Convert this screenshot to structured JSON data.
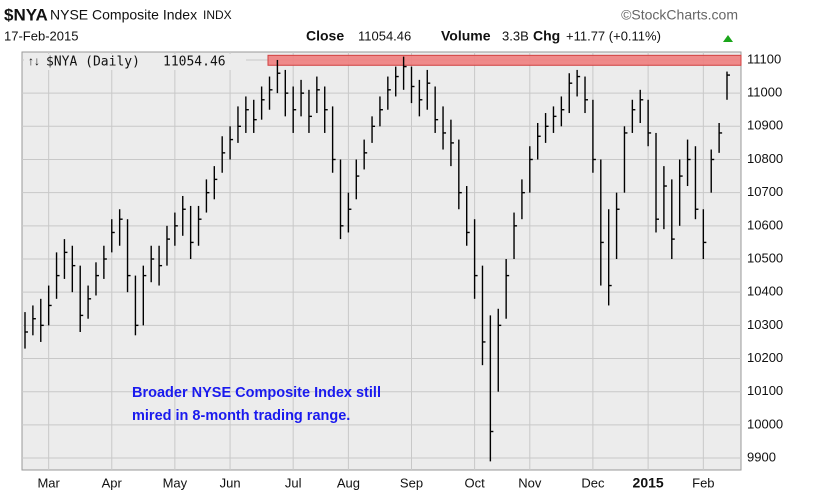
{
  "header": {
    "symbol": "$NYA",
    "name": "NYSE Composite Index",
    "exchange": "INDX",
    "source": "©StockCharts.com",
    "date": "17-Feb-2015",
    "close_label": "Close",
    "volume_label": "Volume",
    "volume": "3.3B",
    "change_label": "Chg",
    "change": "+11.77 (+0.11%)"
  },
  "chart_data": {
    "type": "hlc",
    "legend_symbol": "↑↓",
    "name": "$NYA (Daily)",
    "color": "#000000",
    "annotation": [
      "Broader NYSE Composite Index still",
      "mired in 8-month trading range."
    ],
    "annotation_color": "#1a1aee",
    "resistance_band": {
      "low": 11084,
      "high": 11114,
      "color": "#f08080"
    },
    "categories": [
      null,
      null,
      null,
      "Mar",
      null,
      null,
      null,
      null,
      null,
      null,
      null,
      "Apr",
      null,
      null,
      null,
      null,
      null,
      null,
      null,
      "May",
      null,
      null,
      null,
      null,
      null,
      null,
      "Jun",
      null,
      null,
      null,
      null,
      null,
      null,
      null,
      "Jul",
      null,
      null,
      null,
      null,
      null,
      null,
      "Aug",
      null,
      null,
      null,
      null,
      null,
      null,
      null,
      "Sep",
      null,
      null,
      null,
      null,
      null,
      null,
      null,
      "Oct",
      null,
      null,
      null,
      null,
      null,
      null,
      "Nov",
      null,
      null,
      null,
      null,
      null,
      null,
      null,
      "Dec",
      null,
      null,
      null,
      null,
      null,
      null,
      "2015",
      null,
      null,
      null,
      null,
      null,
      null,
      "Feb",
      null,
      null,
      null
    ],
    "high": [
      10340,
      10360,
      10380,
      10420,
      10520,
      10560,
      10540,
      10480,
      10420,
      10490,
      10540,
      10620,
      10650,
      10620,
      10450,
      10480,
      10540,
      10540,
      10600,
      10640,
      10690,
      10660,
      10660,
      10740,
      10780,
      10870,
      10900,
      10960,
      10990,
      10980,
      11020,
      11050,
      11100,
      11070,
      11020,
      11040,
      11010,
      11050,
      11020,
      10960,
      10800,
      10700,
      10800,
      10860,
      10930,
      10990,
      11050,
      11080,
      11110,
      11080,
      11040,
      11070,
      11020,
      10960,
      10920,
      10860,
      10720,
      10620,
      10480,
      10330,
      10350,
      10500,
      10640,
      10740,
      10840,
      10910,
      10940,
      10960,
      10990,
      11060,
      11070,
      11050,
      10980,
      10800,
      10650,
      10700,
      10900,
      10980,
      11010,
      10980,
      10880,
      10780,
      10740,
      10800,
      10860,
      10840,
      10650,
      10830,
      10910,
      11065
    ],
    "low": [
      10230,
      10270,
      10250,
      10300,
      10380,
      10440,
      10400,
      10280,
      10320,
      10390,
      10440,
      10520,
      10540,
      10400,
      10270,
      10300,
      10430,
      10420,
      10480,
      10540,
      10570,
      10500,
      10540,
      10640,
      10680,
      10760,
      10800,
      10850,
      10880,
      10880,
      10920,
      10950,
      11000,
      10930,
      10880,
      10930,
      10880,
      10940,
      10880,
      10760,
      10560,
      10580,
      10680,
      10770,
      10850,
      10900,
      10950,
      10990,
      11010,
      10970,
      10930,
      10950,
      10880,
      10830,
      10780,
      10650,
      10540,
      10380,
      10180,
      9890,
      10100,
      10320,
      10500,
      10620,
      10700,
      10800,
      10850,
      10880,
      10900,
      10940,
      10990,
      10940,
      10760,
      10420,
      10360,
      10500,
      10700,
      10880,
      10910,
      10840,
      10580,
      10590,
      10500,
      10600,
      10720,
      10620,
      10500,
      10700,
      10820,
      10980
    ],
    "close": [
      10280,
      10320,
      10300,
      10360,
      10450,
      10520,
      10480,
      10330,
      10380,
      10450,
      10500,
      10580,
      10620,
      10450,
      10300,
      10450,
      10500,
      10480,
      10560,
      10600,
      10650,
      10550,
      10620,
      10700,
      10740,
      10820,
      10860,
      10900,
      10950,
      10920,
      10980,
      11010,
      11060,
      11000,
      10950,
      11000,
      10930,
      11010,
      10950,
      10800,
      10600,
      10650,
      10750,
      10820,
      10900,
      10950,
      11010,
      11050,
      11080,
      11020,
      10980,
      11030,
      10920,
      10880,
      10850,
      10700,
      10580,
      10450,
      10250,
      9980,
      10300,
      10450,
      10600,
      10700,
      10800,
      10870,
      10900,
      10930,
      10950,
      11030,
      11050,
      10980,
      10800,
      10550,
      10420,
      10650,
      10880,
      10950,
      10980,
      10880,
      10620,
      10720,
      10560,
      10750,
      10800,
      10650,
      10550,
      10800,
      10880,
      11054.46
    ],
    "ylim": [
      9864,
      11124
    ],
    "yticks": [
      9900,
      10000,
      10100,
      10200,
      10300,
      10400,
      10500,
      10600,
      10700,
      10800,
      10900,
      11000,
      11100
    ],
    "grid": true
  }
}
